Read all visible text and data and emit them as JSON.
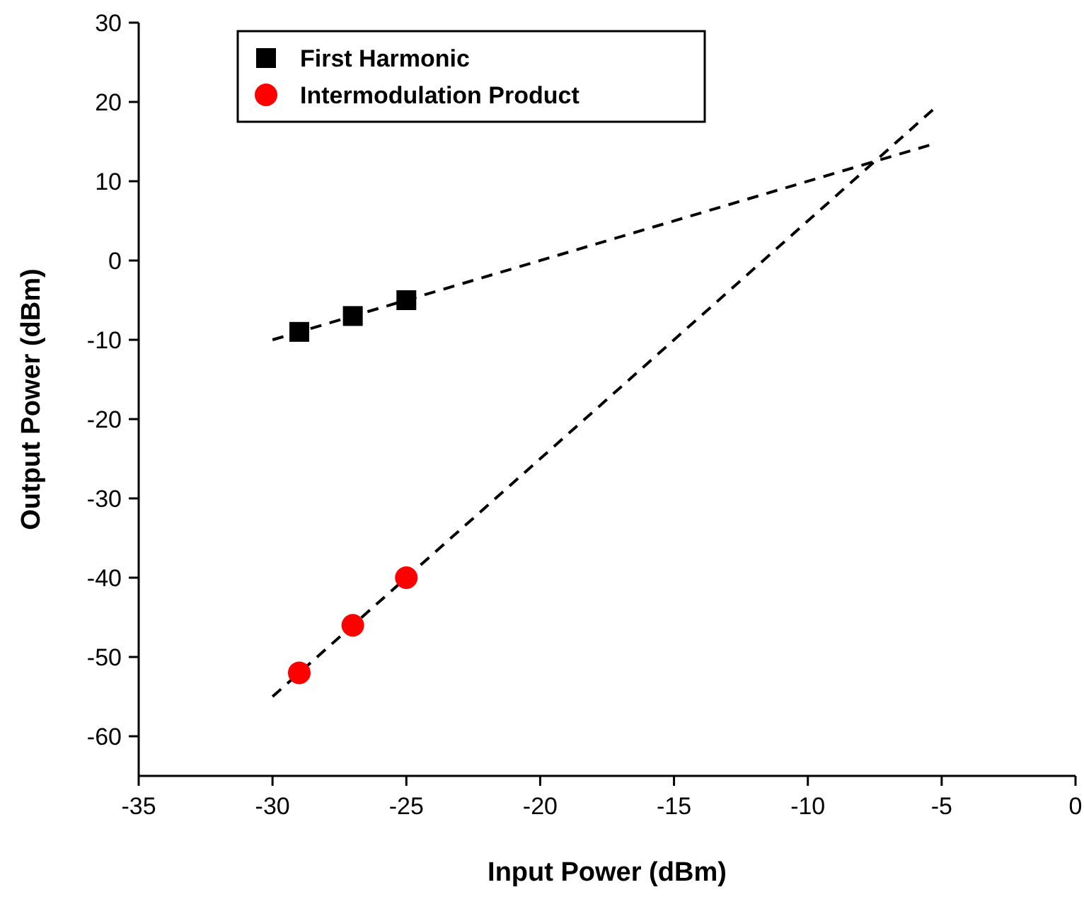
{
  "chart_data": {
    "type": "scatter",
    "xlabel": "Input Power (dBm)",
    "ylabel": "Output Power (dBm)",
    "xlim": [
      -35,
      0
    ],
    "xticks": [
      -35,
      -30,
      -25,
      -20,
      -15,
      -10,
      -5,
      0
    ],
    "ylim": [
      -65,
      30
    ],
    "yticks": [
      -60,
      -50,
      -40,
      -30,
      -20,
      -10,
      0,
      10,
      20,
      30
    ],
    "legend": "top left",
    "grid": false,
    "series": [
      {
        "name": "First Harmonic",
        "marker": "square",
        "color": "#000000",
        "x": [
          -29,
          -27,
          -25
        ],
        "values": [
          -9,
          -7,
          -5
        ]
      },
      {
        "name": "Intermodulation Product",
        "marker": "circle",
        "color": "#ff0000",
        "x": [
          -29,
          -27,
          -25
        ],
        "values": [
          -52,
          -46,
          -40
        ]
      },
      {
        "type": "line",
        "line_style": "dashed",
        "color": "#000000",
        "x": [
          -30,
          -5.3
        ],
        "values": [
          -10,
          14.7
        ]
      },
      {
        "type": "line",
        "line_style": "dashed",
        "color": "#000000",
        "x": [
          -30,
          -5.3
        ],
        "values": [
          -55,
          19.1
        ]
      }
    ]
  }
}
